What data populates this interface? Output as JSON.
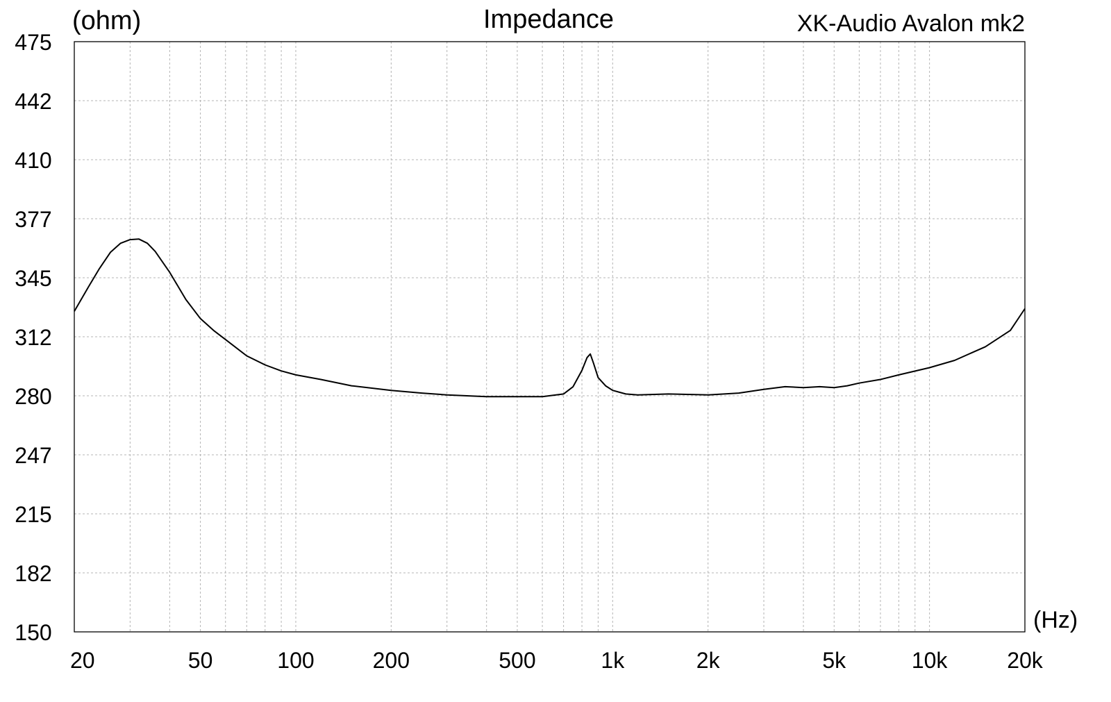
{
  "chart_data": {
    "type": "line",
    "title": "Impedance",
    "subtitle": "XK-Audio Avalon mk2",
    "ylabel": "(ohm)",
    "xlabel": "(Hz)",
    "xscale": "log",
    "xlim": [
      20,
      20000
    ],
    "ylim": [
      150,
      475
    ],
    "grid": true,
    "x_ticks": [
      {
        "value": 20,
        "label": "20"
      },
      {
        "value": 50,
        "label": "50"
      },
      {
        "value": 100,
        "label": "100"
      },
      {
        "value": 200,
        "label": "200"
      },
      {
        "value": 500,
        "label": "500"
      },
      {
        "value": 1000,
        "label": "1k"
      },
      {
        "value": 2000,
        "label": "2k"
      },
      {
        "value": 5000,
        "label": "5k"
      },
      {
        "value": 10000,
        "label": "10k"
      },
      {
        "value": 20000,
        "label": "20k"
      }
    ],
    "y_ticks": [
      {
        "value": 150,
        "label": "150"
      },
      {
        "value": 182.5,
        "label": "182"
      },
      {
        "value": 215,
        "label": "215"
      },
      {
        "value": 247.5,
        "label": "247"
      },
      {
        "value": 280,
        "label": "280"
      },
      {
        "value": 312.5,
        "label": "312"
      },
      {
        "value": 345,
        "label": "345"
      },
      {
        "value": 377.5,
        "label": "377"
      },
      {
        "value": 410,
        "label": "410"
      },
      {
        "value": 442.5,
        "label": "442"
      },
      {
        "value": 475,
        "label": "475"
      }
    ],
    "series": [
      {
        "color": "#000000",
        "x": [
          20,
          22,
          24,
          26,
          28,
          30,
          32,
          34,
          36,
          40,
          45,
          50,
          55,
          60,
          70,
          80,
          90,
          100,
          120,
          150,
          200,
          250,
          300,
          400,
          500,
          600,
          700,
          750,
          800,
          830,
          850,
          870,
          900,
          950,
          1000,
          1100,
          1200,
          1500,
          2000,
          2500,
          3000,
          3500,
          4000,
          4500,
          5000,
          5500,
          6000,
          7000,
          8000,
          10000,
          12000,
          15000,
          18000,
          20000
        ],
        "y": [
          326.5,
          339,
          350,
          359,
          364,
          366,
          366.3,
          364,
          359.5,
          348,
          333,
          322.5,
          316,
          311,
          302,
          297,
          293.7,
          291.5,
          289,
          285.5,
          283,
          281.5,
          280.5,
          279.5,
          279.5,
          279.5,
          281,
          285,
          294,
          301,
          303,
          298,
          290,
          285.5,
          283,
          281,
          280.5,
          281,
          280.5,
          281.5,
          283.5,
          285,
          284.5,
          285,
          284.5,
          285.5,
          287,
          289,
          291.5,
          295.5,
          299.5,
          307,
          316,
          328
        ]
      }
    ]
  }
}
